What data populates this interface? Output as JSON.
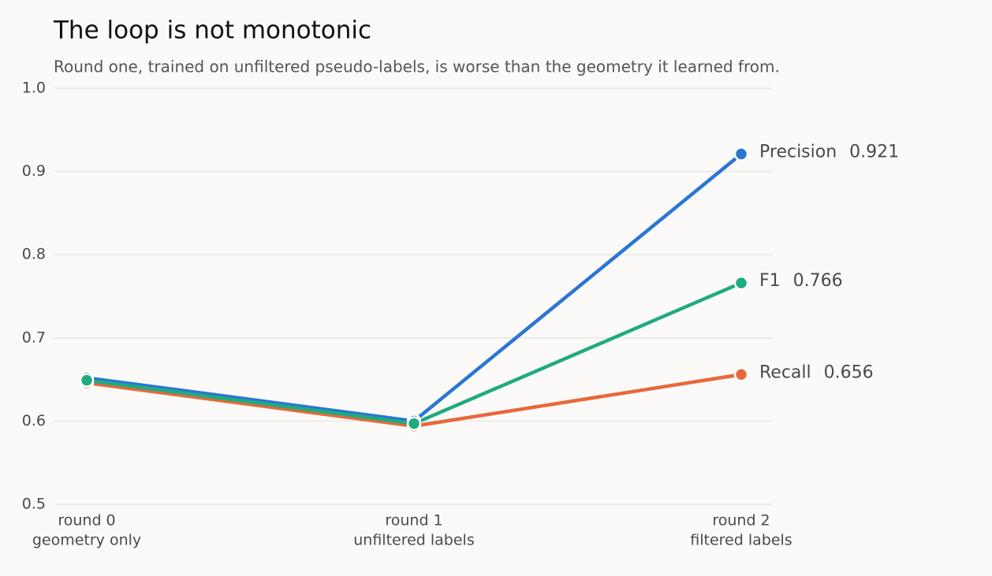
{
  "chart_data": {
    "type": "line",
    "title": "The loop is not monotonic",
    "subtitle": "Round one, trained on unfiltered pseudo-labels, is worse than the geometry it learned from.",
    "categories": [
      [
        "round 0",
        "geometry only"
      ],
      [
        "round 1",
        "unfiltered labels"
      ],
      [
        "round 2",
        "filtered labels"
      ]
    ],
    "series": [
      {
        "name": "Precision",
        "color": "#2b76d3",
        "values": [
          0.652,
          0.6,
          0.921
        ],
        "value_labels": [
          null,
          null,
          "0.921"
        ]
      },
      {
        "name": "Recall",
        "color": "#e8683b",
        "values": [
          0.646,
          0.594,
          0.656
        ],
        "value_labels": [
          null,
          null,
          "0.656"
        ]
      },
      {
        "name": "F1",
        "color": "#1fab7f",
        "values": [
          0.649,
          0.597,
          0.766
        ],
        "value_labels": [
          null,
          null,
          "0.766"
        ]
      }
    ],
    "ylim": [
      0.5,
      1.0
    ],
    "yticks": [
      {
        "value": 0.5,
        "label": "0.5"
      },
      {
        "value": 0.6,
        "label": "0.6"
      },
      {
        "value": 0.7,
        "label": "0.7"
      },
      {
        "value": 0.8,
        "label": "0.8"
      },
      {
        "value": 0.9,
        "label": "0.9"
      },
      {
        "value": 1.0,
        "label": "1.0"
      }
    ],
    "grid": true
  }
}
